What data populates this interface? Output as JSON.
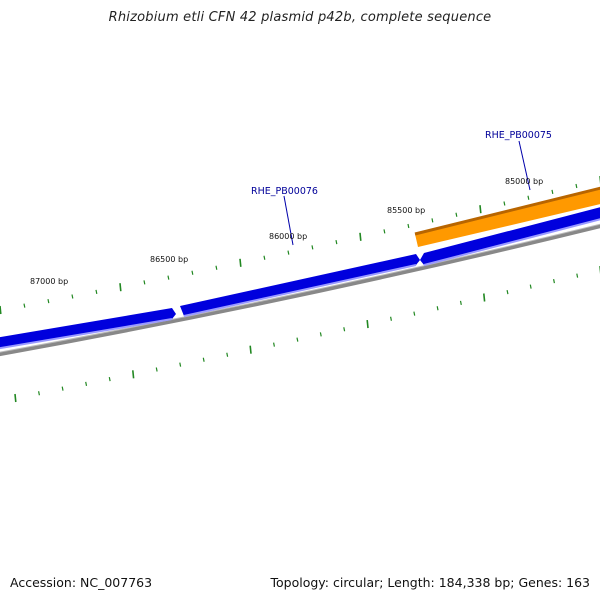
{
  "title": "Rhizobium etli CFN 42 plasmid p42b, complete sequence",
  "ticks": [
    {
      "label": "85000 bp"
    },
    {
      "label": "85500 bp"
    },
    {
      "label": "86000 bp"
    },
    {
      "label": "86500 bp"
    },
    {
      "label": "87000 bp"
    }
  ],
  "genes": [
    {
      "label": "RHE_PB00075",
      "color": "#ff9900",
      "strand": "outer"
    },
    {
      "label": "RHE_PB00076",
      "color": "#0000dd",
      "strand": "inner"
    }
  ],
  "colors": {
    "forward_gene": "#ff9900",
    "reverse_gene": "#0000dd",
    "backbone": "#888888",
    "ticks": "#228822",
    "gene_label": "#000099"
  },
  "footer": {
    "accession": "Accession: NC_007763",
    "summary": "Topology: circular; Length: 184,338 bp; Genes: 163"
  }
}
